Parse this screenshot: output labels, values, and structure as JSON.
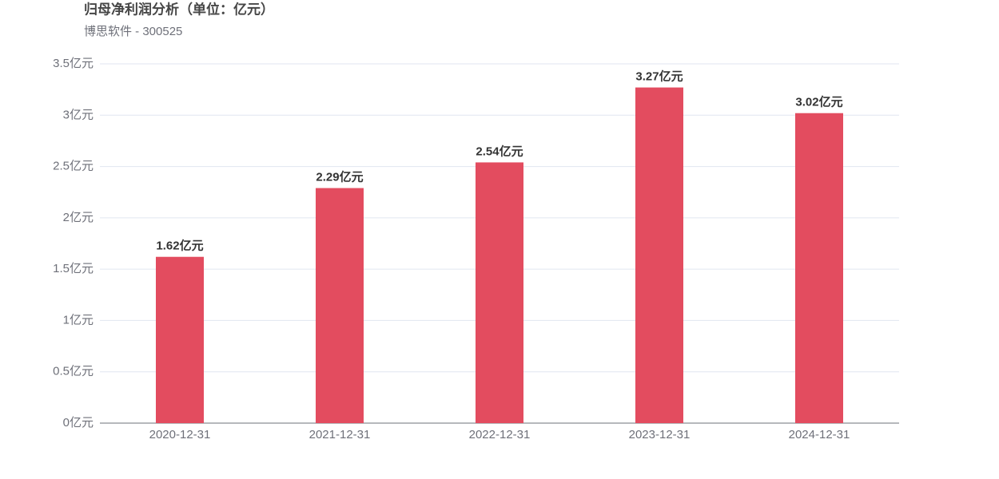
{
  "chart_data": {
    "type": "bar",
    "title": "归母净利润分析（单位：亿元）",
    "subtitle": "博思软件 - 300525",
    "categories": [
      "2020-12-31",
      "2021-12-31",
      "2022-12-31",
      "2023-12-31",
      "2024-12-31"
    ],
    "values": [
      1.62,
      2.29,
      2.54,
      3.27,
      3.02
    ],
    "value_labels": [
      "1.62亿元",
      "2.29亿元",
      "2.54亿元",
      "3.27亿元",
      "3.02亿元"
    ],
    "color": "#e34c5f",
    "ylim": [
      0,
      3.5
    ],
    "yticks": [
      {
        "value": 0,
        "label": "0亿元"
      },
      {
        "value": 0.5,
        "label": "0.5亿元"
      },
      {
        "value": 1,
        "label": "1亿元"
      },
      {
        "value": 1.5,
        "label": "1.5亿元"
      },
      {
        "value": 2,
        "label": "2亿元"
      },
      {
        "value": 2.5,
        "label": "2.5亿元"
      },
      {
        "value": 3,
        "label": "3亿元"
      },
      {
        "value": 3.5,
        "label": "3.5亿元"
      }
    ],
    "grid": true
  }
}
